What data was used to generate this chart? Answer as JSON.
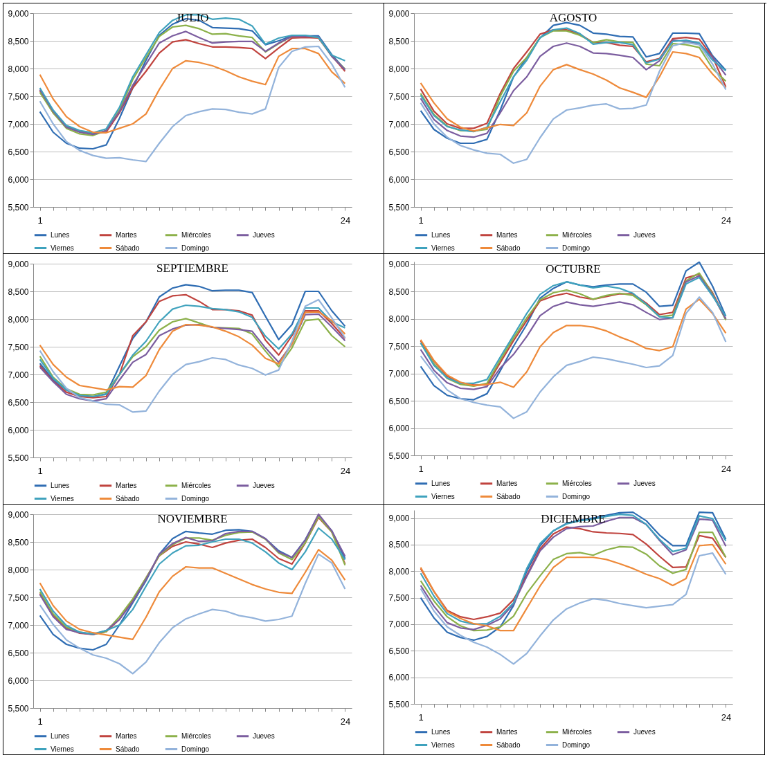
{
  "chart_data": [
    {
      "type": "line",
      "title": "JULIO",
      "categories": [
        "1",
        null,
        null,
        null,
        null,
        null,
        null,
        null,
        null,
        null,
        null,
        null,
        null,
        null,
        null,
        null,
        null,
        null,
        null,
        null,
        null,
        null,
        null,
        "24"
      ],
      "ylim": [
        5500,
        9000
      ],
      "yticks": [
        {
          "value": 5500,
          "label": "5,500"
        },
        {
          "value": 6000,
          "label": "6,000"
        },
        {
          "value": 6500,
          "label": "6,500"
        },
        {
          "value": 7000,
          "label": "7,000"
        },
        {
          "value": 7500,
          "label": "7,500"
        },
        {
          "value": 8000,
          "label": "8,000"
        },
        {
          "value": 8500,
          "label": "8,500"
        },
        {
          "value": 9000,
          "label": "9,000"
        }
      ],
      "grid": "y",
      "legend": "bottom",
      "series": [
        {
          "name": "Lunes",
          "color": "#2f6db3",
          "values": [
            7220,
            6850,
            6650,
            6560,
            6550,
            6620,
            7100,
            7650,
            8150,
            8600,
            8800,
            8900,
            8870,
            8740,
            8730,
            8720,
            8680,
            8430,
            8500,
            8590,
            8590,
            8590,
            8250,
            7980
          ]
        },
        {
          "name": "Martes",
          "color": "#c0433e",
          "values": [
            7600,
            7200,
            6950,
            6870,
            6830,
            6850,
            7200,
            7650,
            7950,
            8280,
            8480,
            8520,
            8450,
            8390,
            8390,
            8380,
            8360,
            8180,
            8370,
            8550,
            8560,
            8550,
            8230,
            7950
          ]
        },
        {
          "name": "Miércoles",
          "color": "#8cb14a",
          "values": [
            7570,
            7200,
            6920,
            6820,
            6790,
            6880,
            7250,
            7800,
            8200,
            8580,
            8750,
            8780,
            8720,
            8620,
            8630,
            8590,
            8560,
            8300,
            8450,
            8580,
            8590,
            8560,
            8220,
            7990
          ]
        },
        {
          "name": "Jueves",
          "color": "#7b5d9f",
          "values": [
            7620,
            7230,
            6940,
            6850,
            6810,
            6880,
            7220,
            7700,
            8080,
            8460,
            8590,
            8670,
            8560,
            8460,
            8480,
            8490,
            8490,
            8310,
            8460,
            8580,
            8580,
            8570,
            8220,
            7980
          ]
        },
        {
          "name": "Viernes",
          "color": "#3fa2bd",
          "values": [
            7650,
            7250,
            6970,
            6880,
            6840,
            6910,
            7300,
            7850,
            8250,
            8650,
            8870,
            8970,
            8970,
            8890,
            8910,
            8890,
            8770,
            8440,
            8550,
            8600,
            8600,
            8560,
            8240,
            8140
          ]
        },
        {
          "name": "Sábado",
          "color": "#ee8a3a",
          "values": [
            7890,
            7450,
            7130,
            6950,
            6850,
            6840,
            6920,
            7000,
            7180,
            7620,
            8000,
            8140,
            8110,
            8050,
            7960,
            7850,
            7770,
            7710,
            8220,
            8360,
            8360,
            8270,
            7940,
            7730
          ]
        },
        {
          "name": "Domingo",
          "color": "#93b3db",
          "values": [
            7410,
            7000,
            6680,
            6520,
            6430,
            6380,
            6390,
            6350,
            6320,
            6650,
            6950,
            7150,
            7220,
            7270,
            7260,
            7210,
            7180,
            7270,
            8020,
            8310,
            8390,
            8400,
            8080,
            7660
          ]
        }
      ]
    },
    {
      "type": "line",
      "title": "AGOSTO",
      "categories": [
        "1",
        null,
        null,
        null,
        null,
        null,
        null,
        null,
        null,
        null,
        null,
        null,
        null,
        null,
        null,
        null,
        null,
        null,
        null,
        null,
        null,
        null,
        null,
        "24"
      ],
      "ylim": [
        5500,
        9000
      ],
      "yticks": [
        {
          "value": 5500,
          "label": "5,500"
        },
        {
          "value": 6000,
          "label": "6,000"
        },
        {
          "value": 6500,
          "label": "6,500"
        },
        {
          "value": 7000,
          "label": "7,000"
        },
        {
          "value": 7500,
          "label": "7,500"
        },
        {
          "value": 8000,
          "label": "8,000"
        },
        {
          "value": 8500,
          "label": "8,500"
        },
        {
          "value": 9000,
          "label": "9,000"
        }
      ],
      "grid": "y",
      "legend": "bottom",
      "series": [
        {
          "name": "Lunes",
          "color": "#2f6db3",
          "values": [
            7240,
            6900,
            6740,
            6650,
            6650,
            6720,
            7250,
            7850,
            8200,
            8550,
            8780,
            8830,
            8780,
            8640,
            8620,
            8580,
            8570,
            8210,
            8270,
            8640,
            8640,
            8630,
            8230,
            7970
          ]
        },
        {
          "name": "Martes",
          "color": "#c0433e",
          "values": [
            7630,
            7230,
            7000,
            6920,
            6920,
            7010,
            7550,
            8000,
            8300,
            8620,
            8700,
            8700,
            8620,
            8470,
            8470,
            8420,
            8400,
            8120,
            8180,
            8540,
            8560,
            8530,
            8210,
            7670
          ]
        },
        {
          "name": "Miércoles",
          "color": "#8cb14a",
          "values": [
            7550,
            7170,
            6960,
            6880,
            6870,
            6900,
            7500,
            7950,
            8200,
            8560,
            8680,
            8680,
            8600,
            8470,
            8520,
            8480,
            8470,
            8080,
            8050,
            8450,
            8430,
            8380,
            8000,
            7770
          ]
        },
        {
          "name": "Jueves",
          "color": "#7b5d9f",
          "values": [
            7460,
            7080,
            6880,
            6780,
            6760,
            6830,
            7200,
            7600,
            7850,
            8220,
            8400,
            8460,
            8400,
            8280,
            8270,
            8240,
            8200,
            7980,
            8140,
            8510,
            8490,
            8450,
            8200,
            7880
          ]
        },
        {
          "name": "Viernes",
          "color": "#3fa2bd",
          "values": [
            7520,
            7150,
            6950,
            6890,
            6860,
            6940,
            7400,
            7850,
            8150,
            8560,
            8700,
            8730,
            8630,
            8440,
            8470,
            8470,
            8430,
            8100,
            8170,
            8490,
            8510,
            8460,
            8150,
            7960
          ]
        },
        {
          "name": "Sábado",
          "color": "#ee8a3a",
          "values": [
            7740,
            7380,
            7090,
            6940,
            6870,
            6930,
            6990,
            6970,
            7200,
            7680,
            7980,
            8070,
            7980,
            7900,
            7790,
            7650,
            7570,
            7480,
            7850,
            8300,
            8270,
            8200,
            7900,
            7650
          ]
        },
        {
          "name": "Domingo",
          "color": "#93b3db",
          "values": [
            7380,
            7000,
            6760,
            6610,
            6530,
            6470,
            6450,
            6290,
            6360,
            6750,
            7090,
            7250,
            7290,
            7340,
            7360,
            7270,
            7280,
            7340,
            7950,
            8410,
            8470,
            8430,
            8080,
            7620
          ]
        }
      ]
    },
    {
      "type": "line",
      "title": "SEPTIEMBRE",
      "categories": [
        "1",
        null,
        null,
        null,
        null,
        null,
        null,
        null,
        null,
        null,
        null,
        null,
        null,
        null,
        null,
        null,
        null,
        null,
        null,
        null,
        null,
        null,
        null,
        "24"
      ],
      "ylim": [
        5500,
        9000
      ],
      "yticks": [
        {
          "value": 5500,
          "label": "5,500"
        },
        {
          "value": 6000,
          "label": "6,000"
        },
        {
          "value": 6500,
          "label": "6,500"
        },
        {
          "value": 7000,
          "label": "7,000"
        },
        {
          "value": 7500,
          "label": "7,500"
        },
        {
          "value": 8000,
          "label": "8,000"
        },
        {
          "value": 8500,
          "label": "8,500"
        },
        {
          "value": 9000,
          "label": "9,000"
        }
      ],
      "grid": "y",
      "legend": "bottom",
      "series": [
        {
          "name": "Lunes",
          "color": "#2f6db3",
          "values": [
            7200,
            6900,
            6720,
            6630,
            6600,
            6650,
            7150,
            7650,
            7950,
            8400,
            8560,
            8620,
            8590,
            8510,
            8520,
            8520,
            8480,
            8050,
            7630,
            7900,
            8500,
            8500,
            8150,
            7870
          ]
        },
        {
          "name": "Martes",
          "color": "#c0433e",
          "values": [
            7160,
            6880,
            6680,
            6600,
            6580,
            6600,
            7000,
            7700,
            7950,
            8320,
            8420,
            8440,
            8320,
            8170,
            8170,
            8150,
            8070,
            7620,
            7350,
            7700,
            8150,
            8150,
            7920,
            7650
          ]
        },
        {
          "name": "Miércoles",
          "color": "#8cb14a",
          "values": [
            7330,
            6950,
            6740,
            6640,
            6630,
            6680,
            7000,
            7320,
            7500,
            7800,
            7950,
            8010,
            7930,
            7850,
            7840,
            7830,
            7730,
            7420,
            7140,
            7480,
            7970,
            8000,
            7700,
            7500
          ]
        },
        {
          "name": "Jueves",
          "color": "#7b5d9f",
          "values": [
            7130,
            6870,
            6640,
            6560,
            6520,
            6560,
            6900,
            7220,
            7360,
            7700,
            7820,
            7890,
            7900,
            7850,
            7830,
            7810,
            7780,
            7480,
            7220,
            7550,
            8080,
            8090,
            7860,
            7610
          ]
        },
        {
          "name": "Viernes",
          "color": "#3fa2bd",
          "values": [
            7270,
            6930,
            6720,
            6620,
            6600,
            6640,
            7000,
            7350,
            7600,
            7950,
            8180,
            8250,
            8230,
            8190,
            8170,
            8130,
            8030,
            7690,
            7460,
            7730,
            8200,
            8200,
            7950,
            7840
          ]
        },
        {
          "name": "Sábado",
          "color": "#ee8a3a",
          "values": [
            7530,
            7180,
            6950,
            6800,
            6760,
            6720,
            6780,
            6770,
            6980,
            7450,
            7780,
            7900,
            7890,
            7860,
            7780,
            7680,
            7530,
            7290,
            7190,
            7550,
            8120,
            8130,
            7970,
            7730
          ]
        },
        {
          "name": "Domingo",
          "color": "#93b3db",
          "values": [
            7430,
            7050,
            6750,
            6580,
            6520,
            6460,
            6450,
            6320,
            6340,
            6700,
            7000,
            7180,
            7230,
            7300,
            7270,
            7170,
            7110,
            6990,
            7080,
            7600,
            8230,
            8350,
            8020,
            7660
          ]
        }
      ]
    },
    {
      "type": "line",
      "title": "OCTUBRE",
      "categories": [
        "1",
        null,
        null,
        null,
        null,
        null,
        null,
        null,
        null,
        null,
        null,
        null,
        null,
        null,
        null,
        null,
        null,
        null,
        null,
        null,
        null,
        null,
        null,
        "24"
      ],
      "ylim": [
        5500,
        9050
      ],
      "yticks": [
        {
          "value": 5500,
          "label": "5,500"
        },
        {
          "value": 6000,
          "label": "6,000"
        },
        {
          "value": 6500,
          "label": "6,500"
        },
        {
          "value": 7000,
          "label": "7,000"
        },
        {
          "value": 7500,
          "label": "7,500"
        },
        {
          "value": 8000,
          "label": "8,000"
        },
        {
          "value": 8500,
          "label": "8,500"
        },
        {
          "value": 9000,
          "label": "9,000"
        }
      ],
      "grid": "y",
      "legend": "bottom",
      "series": [
        {
          "name": "Lunes",
          "color": "#2f6db3",
          "values": [
            7130,
            6780,
            6600,
            6540,
            6520,
            6630,
            7050,
            7500,
            7900,
            8380,
            8560,
            8680,
            8620,
            8590,
            8620,
            8640,
            8640,
            8490,
            8230,
            8250,
            8880,
            9040,
            8600,
            8050
          ]
        },
        {
          "name": "Martes",
          "color": "#c0433e",
          "values": [
            7600,
            7230,
            6950,
            6830,
            6790,
            6790,
            7200,
            7600,
            7970,
            8330,
            8420,
            8470,
            8400,
            8360,
            8410,
            8460,
            8460,
            8290,
            8080,
            8120,
            8750,
            8820,
            8480,
            8000
          ]
        },
        {
          "name": "Miércoles",
          "color": "#8cb14a",
          "values": [
            7560,
            7180,
            6910,
            6800,
            6770,
            6820,
            7250,
            7650,
            8020,
            8350,
            8480,
            8530,
            8460,
            8360,
            8430,
            8470,
            8430,
            8260,
            8040,
            8070,
            8700,
            8840,
            8460,
            7980
          ]
        },
        {
          "name": "Jueves",
          "color": "#7b5d9f",
          "values": [
            7440,
            7060,
            6830,
            6730,
            6710,
            6760,
            7100,
            7350,
            7680,
            8060,
            8230,
            8310,
            8260,
            8230,
            8270,
            8310,
            8260,
            8120,
            7990,
            8020,
            8680,
            8790,
            8440,
            8000
          ]
        },
        {
          "name": "Viernes",
          "color": "#3fa2bd",
          "values": [
            7560,
            7150,
            6920,
            6820,
            6820,
            6890,
            7300,
            7700,
            8100,
            8450,
            8610,
            8680,
            8620,
            8570,
            8600,
            8560,
            8470,
            8270,
            8040,
            8020,
            8640,
            8760,
            8420,
            8050
          ]
        },
        {
          "name": "Sábado",
          "color": "#ee8a3a",
          "values": [
            7620,
            7240,
            6970,
            6840,
            6780,
            6800,
            6840,
            6750,
            7030,
            7490,
            7750,
            7880,
            7880,
            7850,
            7780,
            7670,
            7580,
            7460,
            7420,
            7490,
            8180,
            8360,
            8100,
            7740
          ]
        },
        {
          "name": "Domingo",
          "color": "#93b3db",
          "values": [
            7320,
            7000,
            6700,
            6540,
            6470,
            6420,
            6390,
            6180,
            6300,
            6660,
            6940,
            7150,
            7220,
            7300,
            7270,
            7220,
            7170,
            7110,
            7140,
            7330,
            8100,
            8400,
            8120,
            7580
          ]
        }
      ]
    },
    {
      "type": "line",
      "title": "NOVIEMBRE",
      "categories": [
        "1",
        null,
        null,
        null,
        null,
        null,
        null,
        null,
        null,
        null,
        null,
        null,
        null,
        null,
        null,
        null,
        null,
        null,
        null,
        null,
        null,
        null,
        null,
        "24"
      ],
      "ylim": [
        5500,
        9000
      ],
      "yticks": [
        {
          "value": 5500,
          "label": "5,500"
        },
        {
          "value": 6000,
          "label": "6,000"
        },
        {
          "value": 6500,
          "label": "6,500"
        },
        {
          "value": 7000,
          "label": "7,000"
        },
        {
          "value": 7500,
          "label": "7,500"
        },
        {
          "value": 8000,
          "label": "8,000"
        },
        {
          "value": 8500,
          "label": "8,500"
        },
        {
          "value": 9000,
          "label": "9,000"
        }
      ],
      "grid": "y",
      "legend": "bottom",
      "series": [
        {
          "name": "Lunes",
          "color": "#2f6db3",
          "values": [
            7170,
            6830,
            6650,
            6580,
            6550,
            6650,
            7000,
            7400,
            7800,
            8280,
            8560,
            8690,
            8660,
            8640,
            8710,
            8720,
            8690,
            8560,
            8340,
            8220,
            8540,
            8980,
            8700,
            8200
          ]
        },
        {
          "name": "Martes",
          "color": "#c0433e",
          "values": [
            7570,
            7170,
            6940,
            6850,
            6830,
            6880,
            7100,
            7450,
            7850,
            8250,
            8420,
            8500,
            8460,
            8400,
            8480,
            8530,
            8550,
            8400,
            8200,
            8100,
            8480,
            8940,
            8680,
            8100
          ]
        },
        {
          "name": "Miércoles",
          "color": "#8cb14a",
          "values": [
            7600,
            7200,
            6960,
            6870,
            6830,
            6880,
            7150,
            7470,
            7850,
            8250,
            8450,
            8570,
            8570,
            8530,
            8620,
            8670,
            8680,
            8550,
            8300,
            8180,
            8480,
            8960,
            8680,
            8080
          ]
        },
        {
          "name": "Jueves",
          "color": "#7b5d9f",
          "values": [
            7550,
            7150,
            6920,
            6860,
            6830,
            6900,
            7100,
            7420,
            7820,
            8280,
            8470,
            8580,
            8510,
            8520,
            8650,
            8690,
            8690,
            8560,
            8320,
            8220,
            8530,
            9000,
            8700,
            8240
          ]
        },
        {
          "name": "Viernes",
          "color": "#3fa2bd",
          "values": [
            7650,
            7250,
            6990,
            6870,
            6840,
            6900,
            7000,
            7280,
            7700,
            8100,
            8300,
            8430,
            8440,
            8500,
            8550,
            8550,
            8480,
            8320,
            8120,
            8000,
            8320,
            8750,
            8550,
            8180
          ]
        },
        {
          "name": "Sábado",
          "color": "#ee8a3a",
          "values": [
            7760,
            7350,
            7070,
            6920,
            6860,
            6820,
            6780,
            6740,
            7140,
            7600,
            7880,
            8050,
            8030,
            8030,
            7930,
            7830,
            7730,
            7650,
            7590,
            7570,
            7950,
            8360,
            8170,
            7810
          ]
        },
        {
          "name": "Domingo",
          "color": "#93b3db",
          "values": [
            7360,
            7010,
            6730,
            6580,
            6460,
            6400,
            6300,
            6120,
            6330,
            6680,
            6950,
            7110,
            7200,
            7280,
            7250,
            7170,
            7130,
            7070,
            7100,
            7160,
            7750,
            8280,
            8120,
            7650
          ]
        }
      ]
    },
    {
      "type": "line",
      "title": "DICIEMBRE",
      "categories": [
        "1",
        null,
        null,
        null,
        null,
        null,
        null,
        null,
        null,
        null,
        null,
        null,
        null,
        null,
        null,
        null,
        null,
        null,
        null,
        null,
        null,
        null,
        null,
        "24"
      ],
      "ylim": [
        5500,
        9150
      ],
      "yticks": [
        {
          "value": 5500,
          "label": "5,500"
        },
        {
          "value": 6000,
          "label": "6,000"
        },
        {
          "value": 6500,
          "label": "6,500"
        },
        {
          "value": 7000,
          "label": "7,000"
        },
        {
          "value": 7500,
          "label": "7,500"
        },
        {
          "value": 8000,
          "label": "8,000"
        },
        {
          "value": 8500,
          "label": "8,500"
        },
        {
          "value": 9000,
          "label": "9,000"
        }
      ],
      "grid": "y",
      "legend": "bottom",
      "series": [
        {
          "name": "Lunes",
          "color": "#2f6db3",
          "values": [
            7500,
            7120,
            6850,
            6750,
            6700,
            6770,
            6950,
            7350,
            8000,
            8480,
            8760,
            8900,
            8960,
            9000,
            9050,
            9100,
            9110,
            8950,
            8680,
            8480,
            8480,
            9110,
            9100,
            8600
          ]
        },
        {
          "name": "Martes",
          "color": "#c0433e",
          "values": [
            8050,
            7620,
            7260,
            7140,
            7090,
            7140,
            7210,
            7460,
            7920,
            8420,
            8700,
            8830,
            8800,
            8740,
            8720,
            8710,
            8690,
            8510,
            8280,
            8070,
            8080,
            8670,
            8620,
            8260
          ]
        },
        {
          "name": "Miércoles",
          "color": "#8cb14a",
          "values": [
            7820,
            7440,
            7140,
            6970,
            6880,
            6890,
            6950,
            7150,
            7580,
            7910,
            8220,
            8330,
            8350,
            8300,
            8400,
            8460,
            8450,
            8320,
            8100,
            7960,
            8030,
            8730,
            8730,
            8260
          ]
        },
        {
          "name": "Jueves",
          "color": "#7b5d9f",
          "values": [
            7730,
            7340,
            7030,
            6930,
            6900,
            6980,
            7100,
            7380,
            7900,
            8380,
            8640,
            8800,
            8840,
            8850,
            8940,
            9010,
            9010,
            8880,
            8580,
            8310,
            8400,
            8980,
            8960,
            8470
          ]
        },
        {
          "name": "Viernes",
          "color": "#3fa2bd",
          "values": [
            7960,
            7530,
            7200,
            7060,
            7000,
            7010,
            7150,
            7400,
            8050,
            8520,
            8760,
            8890,
            8950,
            8980,
            9030,
            9070,
            9050,
            8880,
            8600,
            8370,
            8430,
            9040,
            8990,
            8570
          ]
        },
        {
          "name": "Sábado",
          "color": "#ee8a3a",
          "values": [
            8070,
            7620,
            7240,
            7110,
            7010,
            6970,
            6880,
            6880,
            7300,
            7720,
            8070,
            8260,
            8260,
            8260,
            8220,
            8140,
            8050,
            7940,
            7860,
            7730,
            7860,
            8480,
            8500,
            8130
          ]
        },
        {
          "name": "Domingo",
          "color": "#93b3db",
          "values": [
            7670,
            7250,
            6950,
            6790,
            6660,
            6570,
            6430,
            6250,
            6450,
            6780,
            7080,
            7290,
            7400,
            7480,
            7450,
            7390,
            7350,
            7310,
            7340,
            7370,
            7560,
            8290,
            8340,
            7940
          ]
        }
      ]
    }
  ]
}
